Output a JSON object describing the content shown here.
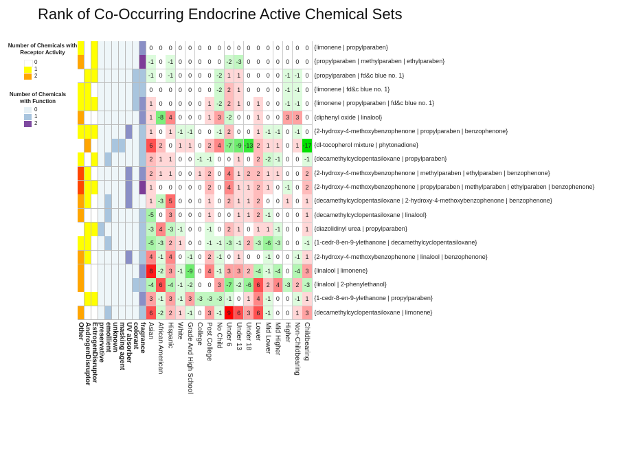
{
  "title": "Rank of Co-Occurring Endocrine Active Chemical Sets",
  "legends": {
    "receptor": {
      "title": "Number of Chemicals with Receptor Activity",
      "levels": [
        "0",
        "1",
        "2"
      ],
      "colors": [
        "#ffffff",
        "#ffff00",
        "#ffa500"
      ]
    },
    "function": {
      "title": "Number of Chemicals with Function",
      "levels": [
        "0",
        "1",
        "2"
      ],
      "colors": [
        "#e6f0f5",
        "#a8c4de",
        "#7e4aa0"
      ]
    }
  },
  "chart_data": {
    "type": "heatmap",
    "title": "Rank of Co-Occurring Endocrine Active Chemical Sets",
    "annotation_columns": [
      "Other",
      "AndrogenDisruptor",
      "EstrogenDisruptor",
      "preservative",
      "emollient",
      "unknown",
      "masking agent",
      "UV absorber",
      "colorant",
      "fragrance"
    ],
    "columns": [
      "Asian",
      "African American",
      "Hispanic",
      "White",
      "Grade And High School",
      "College",
      "Post College",
      "No Child",
      "Under 6",
      "Under 13",
      "Under 18",
      "Lower",
      "Mid Lower",
      "Mid Higher",
      "Higher",
      "Non-Childbearing",
      "Childbearing"
    ],
    "rows": [
      "{limonene | propylparaben}",
      "{propylparaben | methylparaben | ethylparaben}",
      "{propylparaben | fd&c blue no. 1}",
      "{limonene | fd&c blue no. 1}",
      "{limonene | propylparaben | fd&c blue no. 1}",
      "{diphenyl oxide | linalool}",
      "{2-hydroxy-4-methoxybenzophenone | propylparaben | benzophenone}",
      "{dl-tocopherol mixture | phytonadione}",
      "{decamethylcyclopentasiloxane | propylparaben}",
      "{2-hydroxy-4-methoxybenzophenone | methylparaben | ethylparaben | benzophenone}",
      "{2-hydroxy-4-methoxybenzophenone | propylparaben | methylparaben | ethylparaben | benzophenone}",
      "{decamethylcyclopentasiloxane | 2-hydroxy-4-methoxybenzophenone | benzophenone}",
      "{decamethylcyclopentasiloxane | linalool}",
      "{diazolidinyl urea | propylparaben}",
      "{1-cedr-8-en-9-ylethanone | decamethylcyclopentasiloxane}",
      "{2-hydroxy-4-methoxybenzophenone | linalool | benzophenone}",
      "{linalool | limonene}",
      "{linalool | 2-phenylethanol}",
      "{1-cedr-8-en-9-ylethanone | propylparaben}",
      "{decamethylcyclopentasiloxane | limonene}"
    ],
    "values": [
      [
        0,
        0,
        0,
        0,
        0,
        0,
        0,
        0,
        0,
        0,
        0,
        0,
        0,
        0,
        0,
        0,
        0
      ],
      [
        -1,
        0,
        -1,
        0,
        0,
        0,
        0,
        0,
        -2,
        -3,
        0,
        0,
        0,
        0,
        0,
        0,
        0
      ],
      [
        -1,
        0,
        -1,
        0,
        0,
        0,
        0,
        -2,
        1,
        1,
        0,
        0,
        0,
        0,
        -1,
        -1,
        0
      ],
      [
        0,
        0,
        0,
        0,
        0,
        0,
        0,
        -2,
        2,
        1,
        0,
        0,
        0,
        0,
        -1,
        -1,
        0
      ],
      [
        1,
        0,
        0,
        0,
        0,
        0,
        1,
        -2,
        2,
        1,
        0,
        1,
        0,
        0,
        -1,
        -1,
        0
      ],
      [
        1,
        -8,
        4,
        0,
        0,
        0,
        1,
        3,
        -2,
        0,
        0,
        1,
        0,
        0,
        3,
        3,
        0
      ],
      [
        1,
        0,
        1,
        -1,
        -1,
        0,
        0,
        -1,
        2,
        0,
        0,
        1,
        -1,
        -1,
        0,
        -1,
        0
      ],
      [
        6,
        2,
        0,
        1,
        1,
        0,
        2,
        4,
        -7,
        -9,
        -13,
        2,
        1,
        1,
        0,
        1,
        -17
      ],
      [
        2,
        1,
        1,
        0,
        0,
        -1,
        -1,
        0,
        0,
        1,
        0,
        2,
        -2,
        -1,
        0,
        0,
        -1
      ],
      [
        2,
        1,
        1,
        0,
        0,
        1,
        2,
        0,
        4,
        1,
        2,
        2,
        1,
        1,
        0,
        0,
        2
      ],
      [
        1,
        0,
        0,
        0,
        0,
        0,
        2,
        0,
        4,
        1,
        1,
        2,
        1,
        0,
        -1,
        0,
        2
      ],
      [
        1,
        -3,
        5,
        0,
        0,
        0,
        1,
        0,
        2,
        1,
        1,
        2,
        0,
        0,
        1,
        0,
        1
      ],
      [
        -5,
        0,
        3,
        0,
        0,
        0,
        1,
        0,
        0,
        1,
        1,
        2,
        -1,
        0,
        0,
        0,
        1
      ],
      [
        -3,
        4,
        -3,
        -1,
        0,
        0,
        -1,
        0,
        2,
        1,
        0,
        1,
        1,
        -1,
        0,
        0,
        1
      ],
      [
        -5,
        -3,
        2,
        1,
        0,
        0,
        -1,
        -1,
        -3,
        -1,
        2,
        -3,
        -6,
        -3,
        0,
        0,
        -1
      ],
      [
        4,
        -1,
        4,
        0,
        -1,
        0,
        2,
        -1,
        0,
        1,
        0,
        0,
        -1,
        0,
        0,
        -1,
        1
      ],
      [
        8,
        -2,
        3,
        -1,
        -9,
        0,
        4,
        -1,
        3,
        3,
        2,
        -4,
        -1,
        -4,
        0,
        -4,
        3
      ],
      [
        -4,
        6,
        -4,
        -1,
        -2,
        0,
        0,
        3,
        -7,
        -2,
        -6,
        6,
        2,
        4,
        -3,
        2,
        -3
      ],
      [
        3,
        -1,
        3,
        -1,
        3,
        -3,
        -3,
        -3,
        -1,
        0,
        1,
        4,
        -1,
        0,
        0,
        -1,
        1
      ],
      [
        6,
        -2,
        2,
        1,
        -1,
        0,
        3,
        -1,
        9,
        6,
        3,
        6,
        -1,
        0,
        0,
        1,
        3
      ]
    ],
    "annotations": [
      [
        1,
        0,
        1,
        0,
        0,
        0,
        0,
        0,
        0,
        2
      ],
      [
        2,
        0,
        1,
        0,
        0,
        0,
        0,
        0,
        0,
        3
      ],
      [
        0,
        1,
        1,
        0,
        0,
        0,
        0,
        0,
        1,
        1
      ],
      [
        1,
        1,
        0,
        0,
        0,
        0,
        0,
        0,
        1,
        1
      ],
      [
        1,
        1,
        1,
        0,
        0,
        0,
        0,
        0,
        1,
        2
      ],
      [
        2,
        0,
        0,
        0,
        0,
        0,
        0,
        0,
        0,
        2
      ],
      [
        1,
        1,
        1,
        0,
        0,
        0,
        0,
        2,
        0,
        1
      ],
      [
        0,
        2,
        0,
        0,
        0,
        1,
        1,
        0,
        0,
        1
      ],
      [
        1,
        0,
        1,
        0,
        1,
        0,
        0,
        0,
        0,
        1
      ],
      [
        3,
        1,
        0,
        0,
        0,
        0,
        0,
        2,
        0,
        2
      ],
      [
        3,
        1,
        1,
        0,
        0,
        0,
        0,
        2,
        0,
        3
      ],
      [
        2,
        1,
        0,
        0,
        1,
        0,
        0,
        2,
        0,
        0
      ],
      [
        2,
        0,
        0,
        0,
        1,
        0,
        0,
        0,
        0,
        1
      ],
      [
        0,
        1,
        1,
        1,
        0,
        0,
        0,
        0,
        0,
        1
      ],
      [
        1,
        1,
        0,
        0,
        1,
        0,
        0,
        0,
        0,
        1
      ],
      [
        2,
        1,
        0,
        0,
        0,
        0,
        0,
        2,
        0,
        1
      ],
      [
        2,
        0,
        0,
        0,
        0,
        0,
        0,
        0,
        0,
        2
      ],
      [
        2,
        0,
        0,
        0,
        0,
        0,
        0,
        0,
        1,
        1
      ],
      [
        0,
        1,
        1,
        0,
        0,
        0,
        0,
        0,
        0,
        2
      ],
      [
        2,
        0,
        0,
        0,
        1,
        0,
        0,
        0,
        0,
        1
      ]
    ],
    "receptor_colors": [
      "#ffffff",
      "#ffff00",
      "#ffa500",
      "#ff4500"
    ],
    "function_colors": [
      "#eef6f9",
      "#a9c5de",
      "#8a8fc6",
      "#7d3c98"
    ],
    "positive_color": "#ff0000",
    "negative_color": "#00e000",
    "color_range": [
      -17,
      9
    ]
  }
}
